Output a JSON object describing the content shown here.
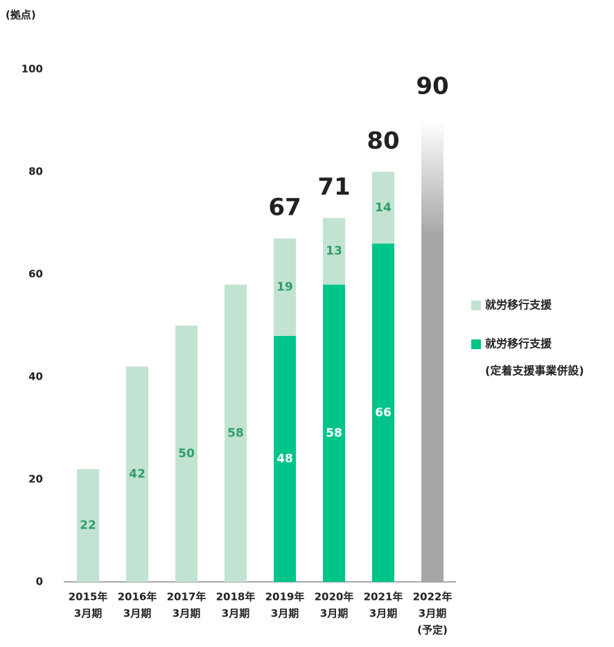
{
  "chart_data": {
    "type": "bar",
    "stacked": true,
    "y_unit": "(拠点)",
    "categories": [
      [
        "2015年",
        "3月期"
      ],
      [
        "2016年",
        "3月期"
      ],
      [
        "2017年",
        "3月期"
      ],
      [
        "2018年",
        "3月期"
      ],
      [
        "2019年",
        "3月期"
      ],
      [
        "2020年",
        "3月期"
      ],
      [
        "2021年",
        "3月期"
      ],
      [
        "2022年",
        "3月期",
        "(予定)"
      ]
    ],
    "series": [
      {
        "name": [
          "就労移行支援(定着支援事業併設)"
        ],
        "name_lines": [
          "就労移行支援",
          "(定着支援事業併設)"
        ],
        "color": "#00c58a",
        "label_color": "#ffffff",
        "values": [
          null,
          null,
          null,
          null,
          48,
          58,
          66,
          null
        ]
      },
      {
        "name": [
          "就労移行支援"
        ],
        "name_lines": [
          "就労移行支援"
        ],
        "color": "#c2e3d1",
        "label_color": "#2e9e6b",
        "values": [
          22,
          42,
          50,
          58,
          19,
          13,
          14,
          null
        ]
      },
      {
        "color": "#a6a6a6",
        "gradient": true,
        "values": [
          null,
          null,
          null,
          null,
          null,
          null,
          null,
          90
        ]
      }
    ],
    "totals": [
      null,
      null,
      null,
      null,
      67,
      71,
      80,
      null
    ],
    "ylim": [
      0,
      100
    ],
    "yticks": [
      0,
      20,
      40,
      60,
      80,
      100
    ],
    "grid": false
  }
}
